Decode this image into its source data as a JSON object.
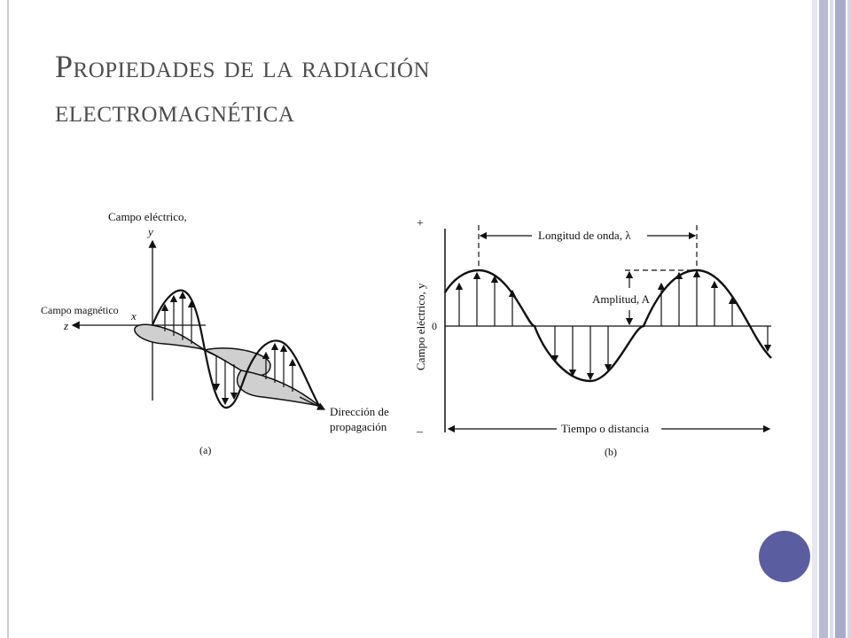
{
  "title": {
    "line1": "Propiedades de la radiación",
    "line2": "electromagnética"
  },
  "figure_a": {
    "label_electric": "Campo eléctrico,",
    "axis_y": "y",
    "label_magnetic": "Campo magnético",
    "axis_x": "x",
    "axis_z": "z",
    "direction_line1": "Dirección de",
    "direction_line2": "propagación",
    "caption": "(a)"
  },
  "figure_b": {
    "plus": "+",
    "zero": "0",
    "minus": "–",
    "y_axis_label": "Campo eléctrico, y",
    "wavelength_label": "Longitud de onda, λ",
    "amplitude_label": "Amplitud, A",
    "x_axis_label": "Tiempo o distancia",
    "caption": "(b)"
  },
  "colors": {
    "title": "#4d4d4d",
    "accent_circle": "#5a5ea0",
    "side_bar_light": "#d4d6e4",
    "side_bar_mid": "#a9acc8",
    "line": "#111111",
    "shade": "#cfcfcf"
  }
}
